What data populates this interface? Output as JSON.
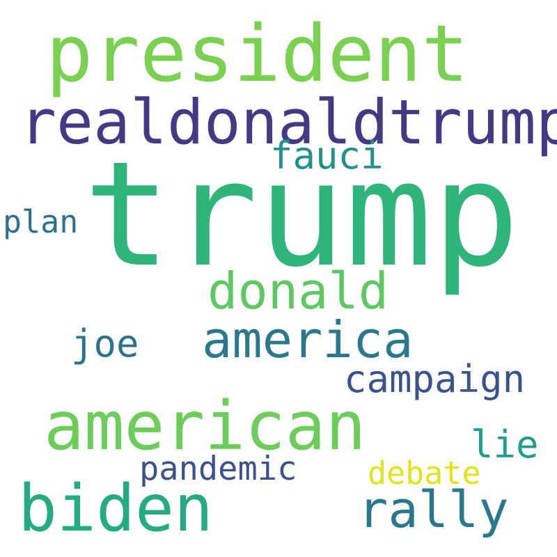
{
  "words": {
    "president": {
      "text": "president",
      "color": "#7ad151"
    },
    "realdonaldtrump": {
      "text": "realdonaldtrump",
      "color": "#443983"
    },
    "fauci": {
      "text": "fauci",
      "color": "#21918c"
    },
    "trump": {
      "text": "trump",
      "color": "#2fb47c"
    },
    "plan": {
      "text": "plan",
      "color": "#2c728e"
    },
    "donald": {
      "text": "donald",
      "color": "#5ec962"
    },
    "america": {
      "text": "america",
      "color": "#2a788e"
    },
    "joe": {
      "text": "joe",
      "color": "#2c728e"
    },
    "campaign": {
      "text": "campaign",
      "color": "#3b528b"
    },
    "american": {
      "text": "american",
      "color": "#6ccd5a"
    },
    "lie": {
      "text": "lie",
      "color": "#1f9e89"
    },
    "pandemic": {
      "text": "pandemic",
      "color": "#3b528b"
    },
    "debate": {
      "text": "debate",
      "color": "#e2e418"
    },
    "biden": {
      "text": "biden",
      "color": "#25ab82"
    },
    "rally": {
      "text": "rally",
      "color": "#2a788e"
    }
  }
}
